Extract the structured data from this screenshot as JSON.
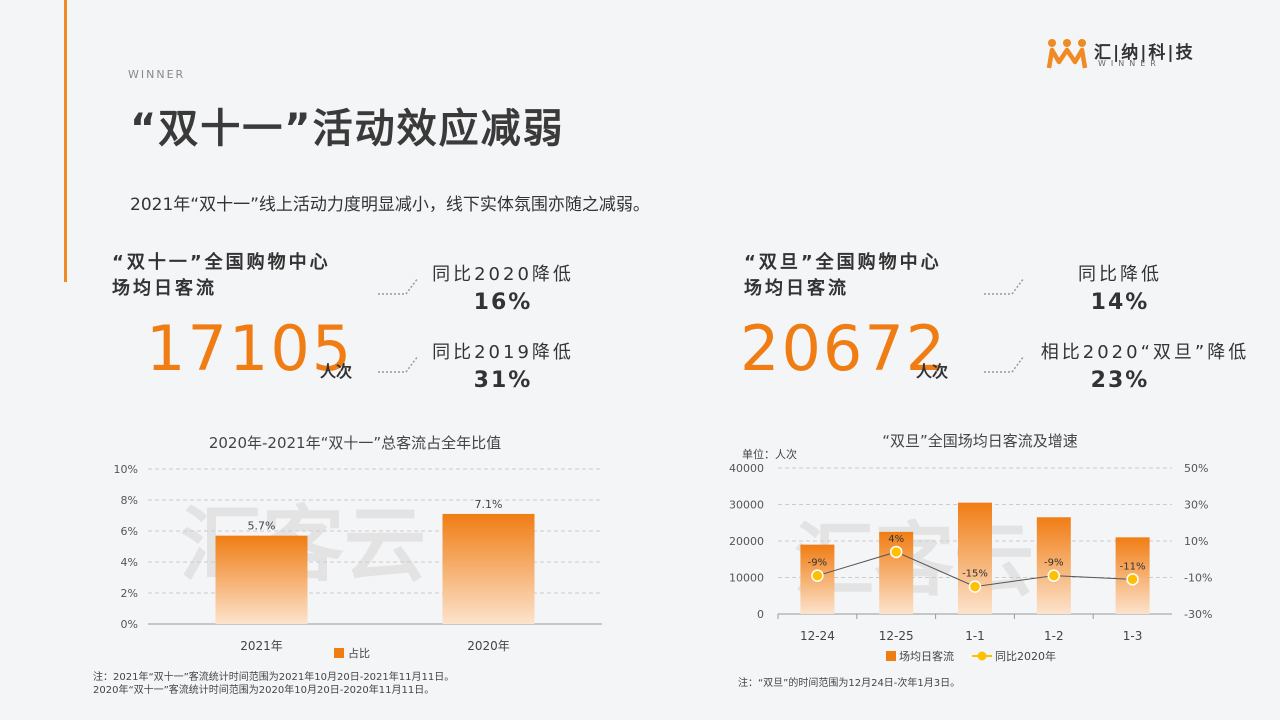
{
  "header": {
    "eyebrow": "WINNER",
    "title": "“双十一”活动效应减弱",
    "subtitle": "2021年“双十一”线上活动力度明显减小，线下实体氛围亦随之减弱。"
  },
  "logo": {
    "name": "汇|纳|科|技",
    "sub": "WINNER",
    "mark_color": "#f08a24"
  },
  "stats": {
    "left": {
      "label": "“双十一”全国购物中心\n场均日客流",
      "number": "17105",
      "unit": "人次",
      "cmp1_label": "同比2020降低",
      "cmp1_value": "16%",
      "cmp2_label": "同比2019降低",
      "cmp2_value": "31%"
    },
    "right": {
      "label": "“双旦”全国购物中心\n场均日客流",
      "number": "20672",
      "unit": "人次",
      "cmp1_label": "同比降低",
      "cmp1_value": "14%",
      "cmp2_label": "相比2020“双旦”降低",
      "cmp2_value": "23%"
    }
  },
  "watermark": "汇客云",
  "chart_data": [
    {
      "type": "bar",
      "title": "2020年-2021年“双十一”总客流占全年比值",
      "categories": [
        "2021年",
        "2020年"
      ],
      "series": [
        {
          "name": "占比",
          "values": [
            5.7,
            7.1
          ]
        }
      ],
      "data_labels": [
        "5.7%",
        "7.1%"
      ],
      "yticks": [
        "10%",
        "8%",
        "6%",
        "4%",
        "2%",
        "0%"
      ],
      "ylim": [
        0,
        10
      ],
      "grid": true,
      "legend": "bottom",
      "color": "#f07d14"
    },
    {
      "type": "bar",
      "title": "“双旦”全国场均日客流及增速",
      "unit_label": "单位：人次",
      "categories": [
        "12-24",
        "12-25",
        "1-1",
        "1-2",
        "1-3"
      ],
      "series": [
        {
          "name": "场均日客流",
          "type": "bar",
          "axis": "left",
          "values": [
            19000,
            22500,
            30500,
            26500,
            21000
          ]
        },
        {
          "name": "同比2020年",
          "type": "line",
          "axis": "right",
          "values": [
            -9,
            4,
            -15,
            -9,
            -11
          ]
        }
      ],
      "line_labels": [
        "-9%",
        "4%",
        "-15%",
        "-9%",
        "-11%"
      ],
      "yticks_left": [
        "40000",
        "30000",
        "20000",
        "10000",
        "0"
      ],
      "yticks_right": [
        "50%",
        "30%",
        "10%",
        "-10%",
        "-30%"
      ],
      "ylim_left": [
        0,
        40000
      ],
      "ylim_right": [
        -30,
        50
      ],
      "grid": true,
      "legend": "bottom",
      "bar_color": "#f07d14",
      "line_color": "#ffc000"
    }
  ],
  "notes": {
    "left": "注：2021年“双十一”客流统计时间范围为2021年10月20日-2021年11月11日。\n2020年“双十一”客流统计时间范围为2020年10月20日-2020年11月11日。",
    "right": "注：“双旦”的时间范围为12月24日-次年1月3日。"
  }
}
